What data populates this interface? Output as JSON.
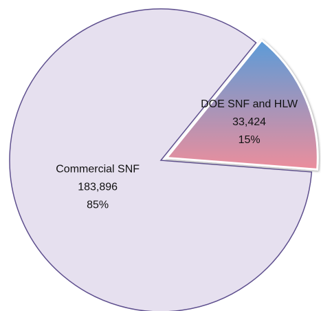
{
  "chart_data": {
    "type": "pie",
    "categories": [
      "Commercial SNF",
      "DOE SNF and HLW"
    ],
    "values": [
      183896,
      33424
    ],
    "value_labels": [
      "183,896",
      "33,424"
    ],
    "percentages": [
      85,
      15
    ],
    "percentage_labels": [
      "85%",
      "15%"
    ],
    "colors": [
      [
        "#e6e0ef",
        "#e6e0ef"
      ],
      [
        "#5b9bd8",
        "#ec8e9c"
      ]
    ],
    "exploded": [
      false,
      true
    ]
  }
}
